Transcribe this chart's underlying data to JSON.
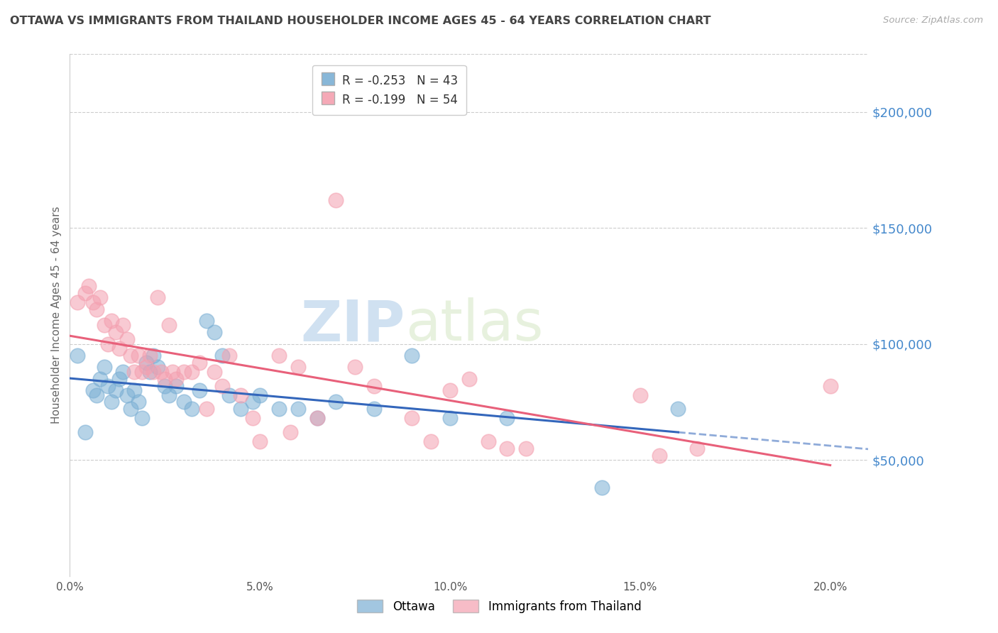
{
  "title": "OTTAWA VS IMMIGRANTS FROM THAILAND HOUSEHOLDER INCOME AGES 45 - 64 YEARS CORRELATION CHART",
  "source": "Source: ZipAtlas.com",
  "ylabel": "Householder Income Ages 45 - 64 years",
  "xlabel_ticks": [
    "0.0%",
    "5.0%",
    "10.0%",
    "15.0%",
    "20.0%"
  ],
  "xlabel_vals": [
    0.0,
    0.05,
    0.1,
    0.15,
    0.2
  ],
  "ylabel_ticks": [
    "$50,000",
    "$100,000",
    "$150,000",
    "$200,000"
  ],
  "ylabel_vals": [
    50000,
    100000,
    150000,
    200000
  ],
  "xlim": [
    0.0,
    0.21
  ],
  "ylim": [
    0,
    225000
  ],
  "ottawa_color": "#7BAFD4",
  "thailand_color": "#F4A0B0",
  "ottawa_line_color": "#3366BB",
  "thailand_line_color": "#E8607A",
  "ottawa_R": -0.253,
  "ottawa_N": 43,
  "thailand_R": -0.199,
  "thailand_N": 54,
  "watermark_zip": "ZIP",
  "watermark_atlas": "atlas",
  "background_color": "#ffffff",
  "grid_color": "#cccccc",
  "title_color": "#444444",
  "axis_label_color": "#666666",
  "tick_color_right": "#4488CC",
  "ottawa_x": [
    0.002,
    0.004,
    0.006,
    0.007,
    0.008,
    0.009,
    0.01,
    0.011,
    0.012,
    0.013,
    0.014,
    0.015,
    0.016,
    0.017,
    0.018,
    0.019,
    0.02,
    0.021,
    0.022,
    0.023,
    0.025,
    0.026,
    0.028,
    0.03,
    0.032,
    0.034,
    0.036,
    0.038,
    0.04,
    0.042,
    0.045,
    0.048,
    0.05,
    0.055,
    0.06,
    0.065,
    0.07,
    0.08,
    0.09,
    0.1,
    0.115,
    0.14,
    0.16
  ],
  "ottawa_y": [
    95000,
    62000,
    80000,
    78000,
    85000,
    90000,
    82000,
    75000,
    80000,
    85000,
    88000,
    78000,
    72000,
    80000,
    75000,
    68000,
    92000,
    88000,
    95000,
    90000,
    82000,
    78000,
    82000,
    75000,
    72000,
    80000,
    110000,
    105000,
    95000,
    78000,
    72000,
    75000,
    78000,
    72000,
    72000,
    68000,
    75000,
    72000,
    95000,
    68000,
    68000,
    38000,
    72000
  ],
  "thailand_x": [
    0.002,
    0.004,
    0.005,
    0.006,
    0.007,
    0.008,
    0.009,
    0.01,
    0.011,
    0.012,
    0.013,
    0.014,
    0.015,
    0.016,
    0.017,
    0.018,
    0.019,
    0.02,
    0.021,
    0.022,
    0.023,
    0.024,
    0.025,
    0.026,
    0.027,
    0.028,
    0.03,
    0.032,
    0.034,
    0.036,
    0.038,
    0.04,
    0.042,
    0.045,
    0.048,
    0.05,
    0.055,
    0.058,
    0.06,
    0.065,
    0.07,
    0.075,
    0.08,
    0.09,
    0.095,
    0.1,
    0.105,
    0.11,
    0.115,
    0.12,
    0.15,
    0.155,
    0.165,
    0.2
  ],
  "thailand_y": [
    118000,
    122000,
    125000,
    118000,
    115000,
    120000,
    108000,
    100000,
    110000,
    105000,
    98000,
    108000,
    102000,
    95000,
    88000,
    95000,
    88000,
    90000,
    95000,
    88000,
    120000,
    88000,
    85000,
    108000,
    88000,
    85000,
    88000,
    88000,
    92000,
    72000,
    88000,
    82000,
    95000,
    78000,
    68000,
    58000,
    95000,
    62000,
    90000,
    68000,
    162000,
    90000,
    82000,
    68000,
    58000,
    80000,
    85000,
    58000,
    55000,
    55000,
    78000,
    52000,
    55000,
    82000
  ]
}
